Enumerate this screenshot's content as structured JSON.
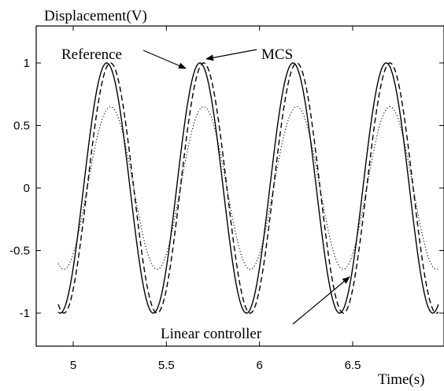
{
  "chart_data": {
    "type": "line",
    "title": "",
    "xlabel": "Time(s)",
    "ylabel": "Displacement(V)",
    "xlim": [
      4.92,
      6.96
    ],
    "ylim": [
      -1.3,
      1.3
    ],
    "x_ticks": [
      5,
      5.5,
      6,
      6.5
    ],
    "x_tick_labels": [
      "5",
      "5.5",
      "6",
      "6.5"
    ],
    "y_ticks": [
      1,
      0.5,
      0,
      -0.5,
      -1
    ],
    "y_tick_labels": [
      "1",
      "0.5",
      "0",
      "-0.5",
      "-1"
    ],
    "grid": false,
    "series": [
      {
        "name": "Reference",
        "style": "solid",
        "color": "#000000",
        "amplitude": 1.0,
        "period": 0.5,
        "first_peak_x": 5.18
      },
      {
        "name": "MCS",
        "style": "dashed",
        "color": "#000000",
        "amplitude": 1.0,
        "period": 0.5,
        "first_peak_x": 5.2
      },
      {
        "name": "Linear controller",
        "style": "dotted",
        "color": "#000000",
        "amplitude": 0.65,
        "period": 0.5,
        "first_peak_x": 5.2
      }
    ],
    "annotations": [
      {
        "text": "Reference",
        "points_to_series": "Reference"
      },
      {
        "text": "MCS",
        "points_to_series": "MCS"
      },
      {
        "text": "Linear controller",
        "points_to_series": "Linear controller"
      }
    ]
  }
}
